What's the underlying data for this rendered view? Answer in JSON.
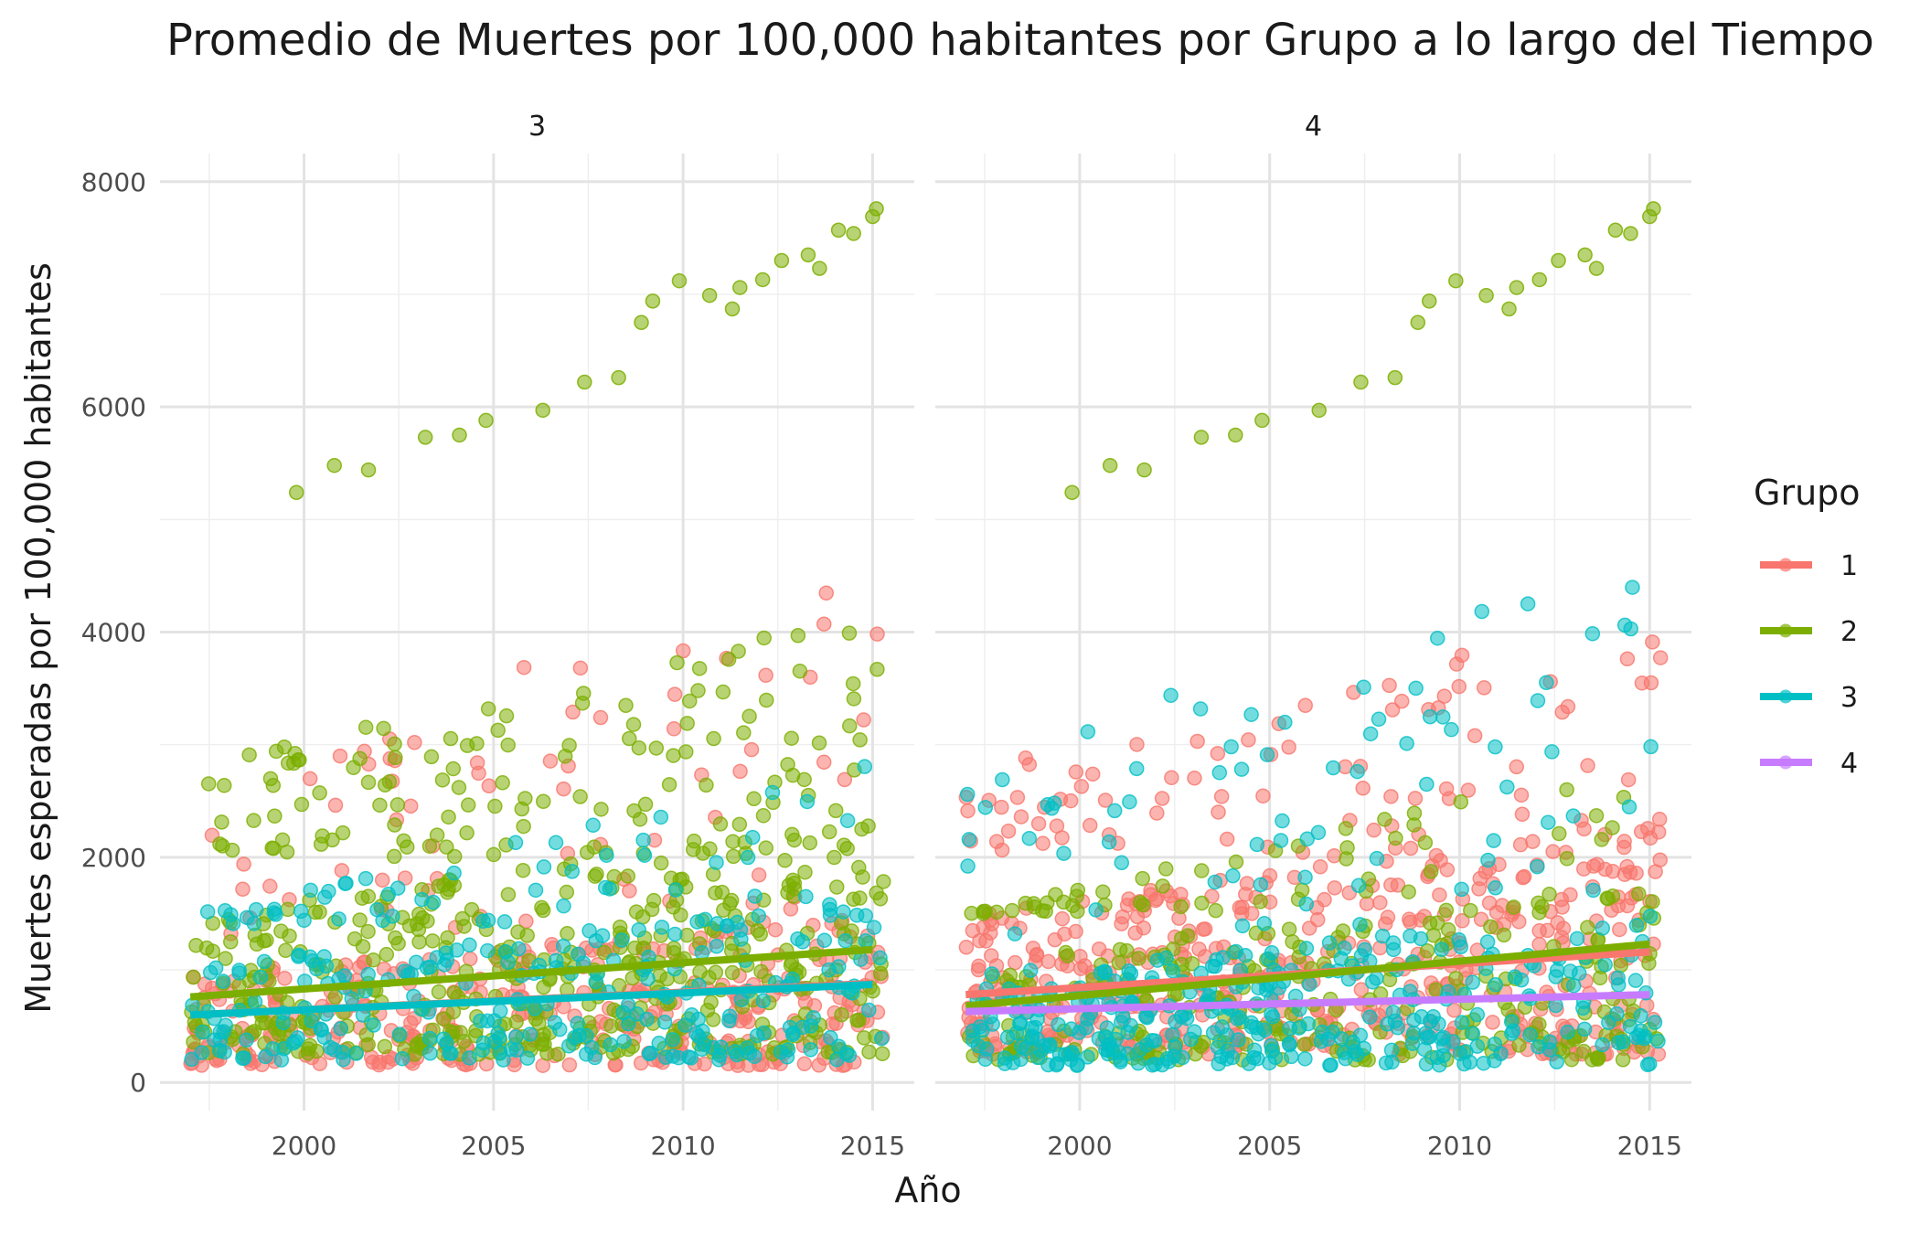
{
  "chart_data": {
    "type": "scatter",
    "title": "Promedio de Muertes por 100,000 habitantes por Grupo a lo largo del Tiempo",
    "xlabel": "Año",
    "ylabel": "Muertes esperadas por 100,000 habitantes",
    "xlim": [
      1996.2,
      2016.1
    ],
    "ylim": [
      -250,
      8250
    ],
    "x_ticks": [
      2000,
      2005,
      2010,
      2015
    ],
    "y_ticks": [
      0,
      2000,
      4000,
      6000,
      8000
    ],
    "grid": true,
    "legend": {
      "title": "Grupo",
      "position": "right",
      "entries": [
        {
          "label": "1",
          "color": "#F8766D"
        },
        {
          "label": "2",
          "color": "#7CAE00"
        },
        {
          "label": "3",
          "color": "#00BFC4"
        },
        {
          "label": "4",
          "color": "#C77CFF"
        }
      ]
    },
    "panels": [
      {
        "facet": "3",
        "highlighted_top_group": "2",
        "trend_lines": [
          {
            "group": "1",
            "color": "#F8766D",
            "x": [
              1997,
              2015
            ],
            "y": [
              600,
              880
            ]
          },
          {
            "group": "2",
            "color": "#7CAE00",
            "x": [
              1997,
              2015
            ],
            "y": [
              760,
              1180
            ]
          },
          {
            "group": "3",
            "color": "#00BFC4",
            "x": [
              1997,
              2015
            ],
            "y": [
              600,
              870
            ]
          }
        ],
        "scatter_groups": [
          {
            "group": "1",
            "color": "#F8766D",
            "n": 420,
            "x_range": [
              1997,
              2015.3
            ],
            "y_base": [
              150,
              1300
            ],
            "y_outlier_max": [
              3000,
              4600
            ]
          },
          {
            "group": "2",
            "color": "#7CAE00",
            "n": 560,
            "x_range": [
              1997,
              2015.3
            ],
            "y_base": [
              250,
              2000
            ],
            "y_outlier_max": [
              2800,
              4200
            ]
          },
          {
            "group": "3",
            "color": "#00BFC4",
            "n": 300,
            "x_range": [
              1997,
              2015.3
            ],
            "y_base": [
              200,
              1400
            ],
            "y_outlier_max": [
              1500,
              2900
            ]
          }
        ]
      },
      {
        "facet": "4",
        "highlighted_top_group": "3",
        "trend_lines": [
          {
            "group": "1",
            "color": "#F8766D",
            "x": [
              1997,
              2015
            ],
            "y": [
              780,
              1160
            ]
          },
          {
            "group": "2",
            "color": "#7CAE00",
            "x": [
              1997,
              2015
            ],
            "y": [
              680,
              1230
            ]
          },
          {
            "group": "4",
            "color": "#C77CFF",
            "x": [
              1997,
              2015
            ],
            "y": [
              630,
              780
            ]
          }
        ],
        "scatter_groups": [
          {
            "group": "1",
            "color": "#F8766D",
            "n": 560,
            "x_range": [
              1997,
              2015.3
            ],
            "y_base": [
              250,
              2000
            ],
            "y_outlier_max": [
              2800,
              4200
            ]
          },
          {
            "group": "2",
            "color": "#7CAE00",
            "n": 300,
            "x_range": [
              1997,
              2015.3
            ],
            "y_base": [
              200,
              1500
            ],
            "y_outlier_max": [
              1500,
              2900
            ]
          },
          {
            "group": "3",
            "color": "#00BFC4",
            "n": 420,
            "x_range": [
              1997,
              2015.3
            ],
            "y_base": [
              150,
              1300
            ],
            "y_outlier_max": [
              3000,
              4600
            ]
          }
        ]
      }
    ],
    "top_outlier_series": {
      "color": "#7CAE00",
      "points": [
        [
          1999.8,
          5240
        ],
        [
          2000.8,
          5480
        ],
        [
          2001.7,
          5440
        ],
        [
          2003.2,
          5730
        ],
        [
          2004.1,
          5750
        ],
        [
          2004.8,
          5880
        ],
        [
          2006.3,
          5970
        ],
        [
          2007.4,
          6220
        ],
        [
          2008.3,
          6260
        ],
        [
          2008.9,
          6750
        ],
        [
          2009.2,
          6940
        ],
        [
          2009.9,
          7120
        ],
        [
          2010.7,
          6990
        ],
        [
          2011.3,
          6870
        ],
        [
          2011.5,
          7060
        ],
        [
          2012.1,
          7130
        ],
        [
          2012.6,
          7300
        ],
        [
          2013.3,
          7350
        ],
        [
          2013.6,
          7230
        ],
        [
          2014.1,
          7570
        ],
        [
          2014.5,
          7540
        ],
        [
          2015.0,
          7690
        ],
        [
          2015.1,
          7760
        ]
      ]
    }
  }
}
